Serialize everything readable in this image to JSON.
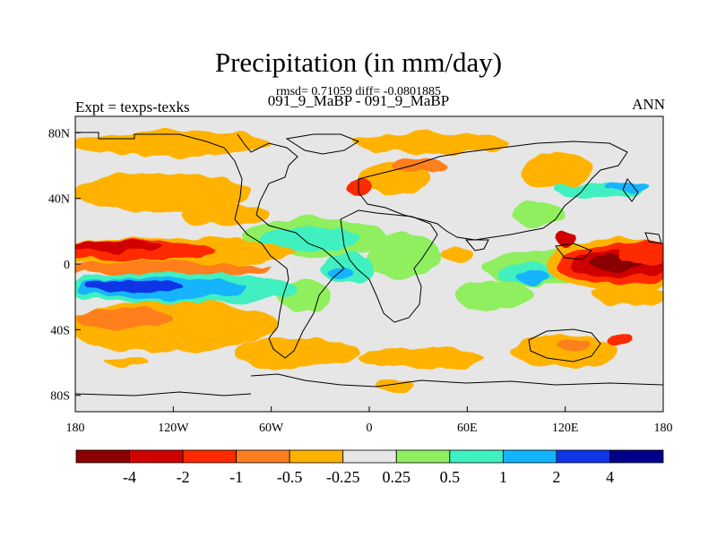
{
  "title": "Precipitation (in mm/day)",
  "stats": "rmsd= 0.71059 diff= -0.0801885",
  "subtitle": "091_9_MaBP - 091_9_MaBP",
  "left_label": "Expt = texps-texks",
  "right_label": "ANN",
  "lat_labels": [
    {
      "text": "80N",
      "lat": 80
    },
    {
      "text": "40N",
      "lat": 40
    },
    {
      "text": "0",
      "lat": 0
    },
    {
      "text": "40S",
      "lat": -40
    },
    {
      "text": "80S",
      "lat": -80
    }
  ],
  "lon_labels": [
    {
      "text": "180",
      "lon": -180
    },
    {
      "text": "120W",
      "lon": -120
    },
    {
      "text": "60W",
      "lon": -60
    },
    {
      "text": "0",
      "lon": 0
    },
    {
      "text": "60E",
      "lon": 60
    },
    {
      "text": "120E",
      "lon": 120
    },
    {
      "text": "180",
      "lon": 180
    }
  ],
  "colorbar": {
    "colors": [
      "#8b0000",
      "#d00000",
      "#ff2a00",
      "#ff7f1e",
      "#ffb300",
      "#e6e6e6",
      "#8fef5f",
      "#3ff0c0",
      "#12b4ff",
      "#1035e6",
      "#00008b"
    ],
    "labels": [
      "-4",
      "-2",
      "-1",
      "-0.5",
      "-0.25",
      "0.25",
      "0.5",
      "1",
      "2",
      "4"
    ]
  },
  "colors": {
    "background": "#e6e6e6",
    "coast": "#000000"
  }
}
